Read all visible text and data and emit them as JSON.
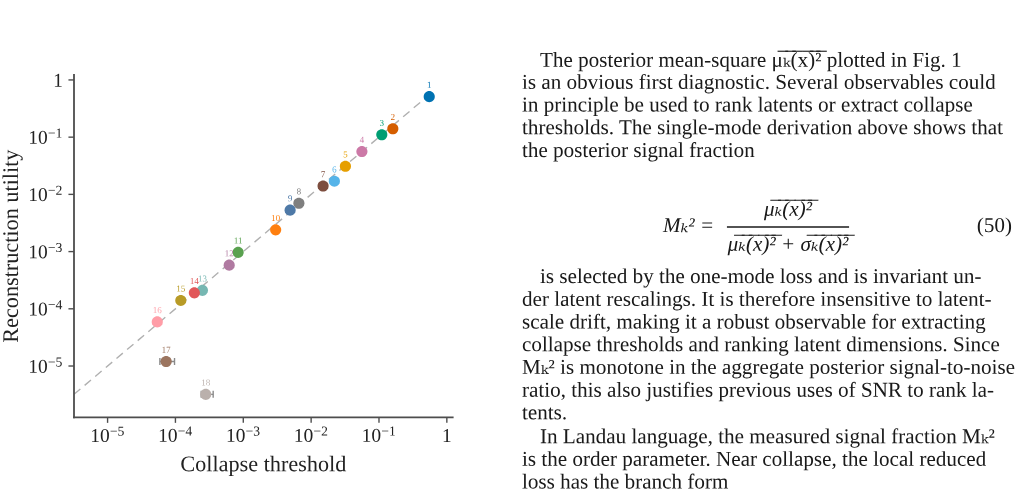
{
  "chart_data": {
    "type": "scatter",
    "xlabel": "Collapse threshold",
    "ylabel": "Reconstruction utility",
    "log": "xy",
    "marker": "circle",
    "xlim": [
      3.2e-06,
      1.22
    ],
    "ylim": [
      1.27e-06,
      1.22
    ],
    "xticks": [
      {
        "value": 1e-05,
        "label": "10$^{−5}$"
      },
      {
        "value": 0.0001,
        "label": "10$^{−4}$"
      },
      {
        "value": 0.001,
        "label": "10$^{−3}$"
      },
      {
        "value": 0.01,
        "label": "10$^{−2}$"
      },
      {
        "value": 0.1,
        "label": "10$^{−1}$"
      },
      1
    ],
    "yticks": [
      {
        "value": 1e-05,
        "label": "10$^{−5}$"
      },
      {
        "value": 0.0001,
        "label": "10$^{−4}$"
      },
      {
        "value": 0.001,
        "label": "10$^{−3}$"
      },
      {
        "value": 0.01,
        "label": "10$^{−2}$"
      },
      {
        "value": 0.1,
        "label": "10$^{−1}$"
      },
      1
    ],
    "series": [
      {
        "name": "1",
        "color": "#0072b2",
        "x": [
          0.55
        ],
        "values": [
          0.51
        ]
      },
      {
        "name": "2",
        "color": "#d55e00",
        "x": [
          0.16
        ],
        "values": [
          0.14
        ]
      },
      {
        "name": "3",
        "color": "#009e73",
        "x": [
          0.11
        ],
        "values": [
          0.11
        ]
      },
      {
        "name": "4",
        "color": "#cc79a7",
        "x": [
          0.056
        ],
        "values": [
          0.056
        ]
      },
      {
        "name": "5",
        "color": "#e69f00",
        "x": [
          0.032
        ],
        "values": [
          0.031
        ]
      },
      {
        "name": "6",
        "color": "#56b4e9",
        "x": [
          0.022
        ],
        "values": [
          0.017
        ]
      },
      {
        "name": "7",
        "color": "#7d4e3f",
        "x": [
          0.015
        ],
        "values": [
          0.014
        ]
      },
      {
        "name": "8",
        "color": "#7f7f7f",
        "x": [
          0.0066
        ],
        "values": [
          0.007
        ]
      },
      {
        "name": "9",
        "color": "#4e79a7",
        "x": [
          0.0049
        ],
        "values": [
          0.0053
        ]
      },
      {
        "name": "10",
        "color": "#ff7f0e",
        "x": [
          0.003
        ],
        "values": [
          0.0024
        ]
      },
      {
        "name": "11",
        "color": "#59a14f",
        "x": [
          0.00084
        ],
        "values": [
          0.00097
        ]
      },
      {
        "name": "12",
        "color": "#b07aa1",
        "x": [
          0.00062
        ],
        "values": [
          0.00058
        ]
      },
      {
        "name": "13",
        "color": "#76b7b2",
        "x": [
          0.00025
        ],
        "values": [
          0.00021
        ]
      },
      {
        "name": "14",
        "color": "#e15759",
        "x": [
          0.00019
        ],
        "values": [
          0.00019
        ]
      },
      {
        "name": "15",
        "color": "#b89b27",
        "x": [
          0.00012
        ],
        "values": [
          0.00014
        ]
      },
      {
        "name": "16",
        "color": "#ff9da7",
        "x": [
          5.4e-05
        ],
        "values": [
          5.9e-05
        ]
      },
      {
        "name": "17",
        "color": "#9c755f",
        "x": [
          7.3e-05
        ],
        "values": [
          1.2e-05
        ],
        "xerrors": [
          [
            5.9e-05,
            9.7e-05
          ]
        ]
      },
      {
        "name": "18",
        "color": "#bab0ac",
        "x": [
          0.00028
        ],
        "values": [
          3.2e-06
        ],
        "xerrors": [
          [
            0.00024,
            0.00036
          ]
        ]
      },
      {
        "type": "line",
        "color": "#b0b0b0",
        "line_style": "dashed",
        "marker": "none",
        "x": [
          3.2e-06,
          0.5
        ],
        "values": [
          3.2e-06,
          0.5
        ]
      }
    ],
    "annotations": [
      "The posterior mean-square μ̅ₖ̅(̅x̅)̅²̅ plotted in Fig. 1\nis an obvious first diagnostic. Several observables could\nin principle be used to rank latents or extract collapse\nthresholds. The single-mode derivation above shows that\nthe posterior signal fraction",
      "Mₖ² =",
      "μ̅ₖ̅(̅x̅)̅²̅",
      "μ̅ₖ̅(̅x̅)̅²̅ + σ̅ₖ̅(̅x̅)̅²̅",
      "(50)",
      "is selected by the one-mode loss and is invariant un-\nder latent rescalings. It is therefore insensitive to latent-\nscale drift, making it a robust observable for extracting\ncollapse thresholds and ranking latent dimensions. Since\nMₖ² is monotone in the aggregate posterior signal-to-noise\nratio, this also justifies previous uses of SNR to rank la-\ntents.",
      "In Landau language, the measured signal fraction Mₖ²\nis the order parameter. Near collapse, the local reduced\nloss has the branch form"
    ]
  }
}
